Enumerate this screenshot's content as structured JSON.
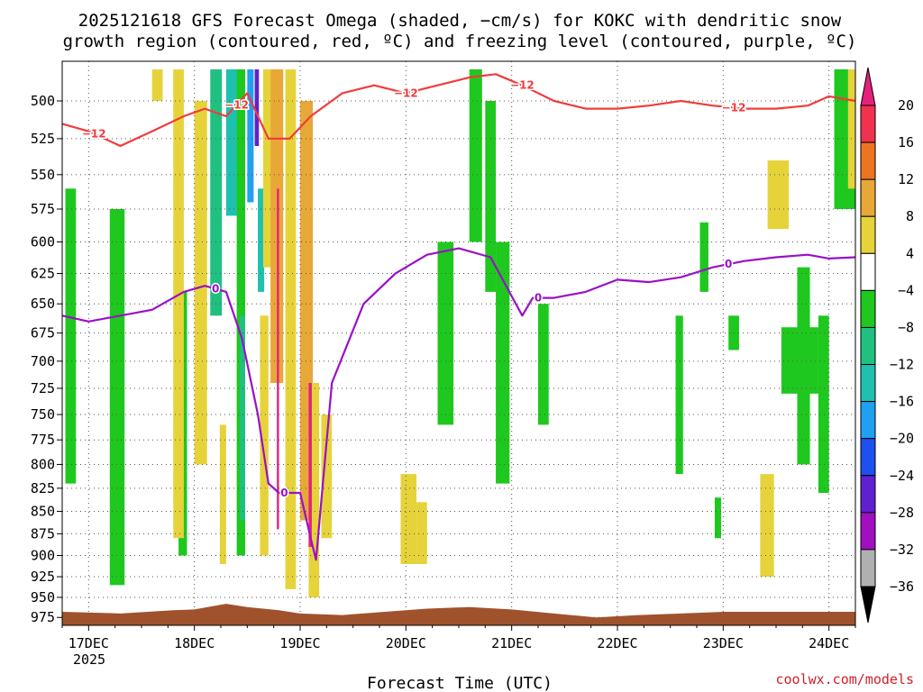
{
  "chart_data": {
    "type": "heatmap",
    "title_line1": "2025121618 GFS Forecast Omega (shaded, −cm/s) for KOKC with dendritic snow",
    "title_line2": "growth region (contoured, red, ºC) and freezing level (contoured, purple, ºC)",
    "xlabel": "Forecast Time (UTC)",
    "ylabel": "",
    "x_ticks": [
      "17DEC",
      "18DEC",
      "19DEC",
      "20DEC",
      "21DEC",
      "22DEC",
      "23DEC",
      "24DEC"
    ],
    "x_tick_days": [
      17,
      18,
      19,
      20,
      21,
      22,
      23,
      24
    ],
    "x_year_label": "2025",
    "xlim": [
      16.75,
      24.25
    ],
    "y_ticks": [
      500,
      525,
      550,
      575,
      600,
      625,
      650,
      675,
      700,
      725,
      750,
      775,
      800,
      825,
      850,
      875,
      900,
      925,
      950,
      975
    ],
    "ylim": [
      475,
      985
    ],
    "y_scale": "log-pressure",
    "grid": true,
    "colorbar": {
      "levels": [
        20,
        16,
        12,
        8,
        4,
        -4,
        -8,
        -12,
        -16,
        -20,
        -24,
        -28,
        -32,
        -36
      ],
      "labels": [
        "20",
        "16",
        "12",
        "8",
        "4",
        "−4",
        "−8",
        "−12",
        "−16",
        "−20",
        "−24",
        "−28",
        "−32",
        "−36"
      ],
      "colors": [
        "#f03250",
        "#ee7520",
        "#e8a838",
        "#e6d33a",
        "#ffffff",
        "#1ec81e",
        "#20c080",
        "#20c0b0",
        "#20a0f0",
        "#1e50f0",
        "#6020d0",
        "#a010c0",
        "#b0b0b0"
      ],
      "top_triangle_color": "#e6207a",
      "bottom_triangle_color": "#000000"
    },
    "omega_cells": [
      {
        "x0": 16.78,
        "x1": 16.88,
        "p0": 560,
        "p1": 820,
        "v": -6
      },
      {
        "x0": 17.2,
        "x1": 17.34,
        "p0": 575,
        "p1": 935,
        "v": -6
      },
      {
        "x0": 17.85,
        "x1": 17.93,
        "p0": 640,
        "p1": 900,
        "v": -6
      },
      {
        "x0": 18.15,
        "x1": 18.26,
        "p0": 480,
        "p1": 660,
        "v": -10
      },
      {
        "x0": 18.3,
        "x1": 18.43,
        "p0": 480,
        "p1": 580,
        "v": -14
      },
      {
        "x0": 18.4,
        "x1": 18.48,
        "p0": 480,
        "p1": 900,
        "v": -6
      },
      {
        "x0": 18.43,
        "x1": 18.48,
        "p0": 660,
        "p1": 860,
        "v": -10
      },
      {
        "x0": 18.5,
        "x1": 18.56,
        "p0": 480,
        "p1": 570,
        "v": -18
      },
      {
        "x0": 18.57,
        "x1": 18.61,
        "p0": 480,
        "p1": 530,
        "v": -26
      },
      {
        "x0": 18.6,
        "x1": 18.66,
        "p0": 560,
        "p1": 640,
        "v": -14
      },
      {
        "x0": 20.3,
        "x1": 20.45,
        "p0": 600,
        "p1": 760,
        "v": -6
      },
      {
        "x0": 20.6,
        "x1": 20.72,
        "p0": 480,
        "p1": 600,
        "v": -6
      },
      {
        "x0": 20.75,
        "x1": 20.85,
        "p0": 500,
        "p1": 640,
        "v": -6
      },
      {
        "x0": 20.85,
        "x1": 20.98,
        "p0": 600,
        "p1": 820,
        "v": -6
      },
      {
        "x0": 21.25,
        "x1": 21.35,
        "p0": 650,
        "p1": 760,
        "v": -6
      },
      {
        "x0": 22.55,
        "x1": 22.62,
        "p0": 660,
        "p1": 810,
        "v": -6
      },
      {
        "x0": 22.78,
        "x1": 22.86,
        "p0": 585,
        "p1": 640,
        "v": -6
      },
      {
        "x0": 22.92,
        "x1": 22.98,
        "p0": 835,
        "p1": 880,
        "v": -6
      },
      {
        "x0": 23.05,
        "x1": 23.15,
        "p0": 660,
        "p1": 690,
        "v": -6
      },
      {
        "x0": 23.55,
        "x1": 23.9,
        "p0": 670,
        "p1": 730,
        "v": -6
      },
      {
        "x0": 23.7,
        "x1": 23.82,
        "p0": 620,
        "p1": 800,
        "v": -6
      },
      {
        "x0": 23.9,
        "x1": 24.0,
        "p0": 660,
        "p1": 830,
        "v": -6
      },
      {
        "x0": 24.05,
        "x1": 24.25,
        "p0": 480,
        "p1": 575,
        "v": -6
      },
      {
        "x0": 17.6,
        "x1": 17.7,
        "p0": 480,
        "p1": 500,
        "v": 5
      },
      {
        "x0": 17.8,
        "x1": 17.9,
        "p0": 480,
        "p1": 880,
        "v": 5
      },
      {
        "x0": 18.0,
        "x1": 18.12,
        "p0": 500,
        "p1": 800,
        "v": 5
      },
      {
        "x0": 18.24,
        "x1": 18.3,
        "p0": 760,
        "p1": 910,
        "v": 6
      },
      {
        "x0": 18.65,
        "x1": 18.75,
        "p0": 480,
        "p1": 620,
        "v": 6
      },
      {
        "x0": 18.72,
        "x1": 18.84,
        "p0": 480,
        "p1": 720,
        "v": 10
      },
      {
        "x0": 18.62,
        "x1": 18.7,
        "p0": 660,
        "p1": 900,
        "v": 6
      },
      {
        "x0": 18.86,
        "x1": 18.96,
        "p0": 480,
        "p1": 940,
        "v": 6
      },
      {
        "x0": 19.0,
        "x1": 19.12,
        "p0": 500,
        "p1": 860,
        "v": 10
      },
      {
        "x0": 19.08,
        "x1": 19.18,
        "p0": 720,
        "p1": 950,
        "v": 6
      },
      {
        "x0": 19.2,
        "x1": 19.3,
        "p0": 750,
        "p1": 880,
        "v": 5
      },
      {
        "x0": 19.95,
        "x1": 20.1,
        "p0": 810,
        "p1": 910,
        "v": 5
      },
      {
        "x0": 20.1,
        "x1": 20.2,
        "p0": 840,
        "p1": 910,
        "v": 5
      },
      {
        "x0": 23.35,
        "x1": 23.48,
        "p0": 810,
        "p1": 925,
        "v": 5
      },
      {
        "x0": 23.42,
        "x1": 23.62,
        "p0": 540,
        "p1": 590,
        "v": 5
      },
      {
        "x0": 24.18,
        "x1": 24.25,
        "p0": 480,
        "p1": 560,
        "v": 5
      },
      {
        "x0": 18.78,
        "x1": 18.8,
        "p0": 560,
        "p1": 870,
        "v": 21
      },
      {
        "x0": 19.08,
        "x1": 19.11,
        "p0": 720,
        "p1": 890,
        "v": 21
      }
    ],
    "dgz_minus12": {
      "label": "−12",
      "color": "#f03c3c",
      "x": [
        16.75,
        17.0,
        17.3,
        17.6,
        17.9,
        18.1,
        18.3,
        18.5,
        18.7,
        18.9,
        19.1,
        19.4,
        19.7,
        20.0,
        20.3,
        20.6,
        20.85,
        21.1,
        21.4,
        21.7,
        22.0,
        22.3,
        22.6,
        22.9,
        23.2,
        23.5,
        23.8,
        24.0,
        24.25
      ],
      "p": [
        515,
        520,
        530,
        520,
        510,
        505,
        510,
        495,
        525,
        525,
        510,
        495,
        490,
        495,
        490,
        485,
        483,
        490,
        500,
        505,
        505,
        503,
        500,
        503,
        505,
        505,
        503,
        497,
        500
      ]
    },
    "freezing_level": {
      "label": "0",
      "color": "#9a10c8",
      "x": [
        16.75,
        17.0,
        17.3,
        17.6,
        17.9,
        18.1,
        18.3,
        18.45,
        18.6,
        18.7,
        18.8,
        19.0,
        19.1,
        19.15,
        19.3,
        19.6,
        19.9,
        20.2,
        20.5,
        20.8,
        21.1,
        21.2,
        21.4,
        21.7,
        22.0,
        22.3,
        22.6,
        22.9,
        23.2,
        23.5,
        23.8,
        24.0,
        24.25
      ],
      "p": [
        660,
        665,
        660,
        655,
        640,
        635,
        640,
        680,
        750,
        820,
        830,
        830,
        880,
        905,
        720,
        650,
        625,
        610,
        605,
        612,
        660,
        645,
        645,
        640,
        630,
        632,
        628,
        620,
        615,
        612,
        610,
        613,
        612
      ]
    },
    "terrain": {
      "color": "#a0522d",
      "x": [
        16.75,
        17.3,
        17.8,
        18.0,
        18.3,
        18.5,
        18.8,
        19.0,
        19.4,
        19.8,
        20.2,
        20.6,
        21.0,
        21.4,
        21.8,
        22.2,
        22.6,
        23.0,
        23.4,
        23.8,
        24.25
      ],
      "p": [
        968,
        970,
        966,
        965,
        958,
        962,
        966,
        970,
        972,
        968,
        964,
        962,
        965,
        970,
        975,
        972,
        970,
        968,
        968,
        968,
        968
      ]
    }
  },
  "footer": {
    "credit": "coolwx.com/models"
  }
}
